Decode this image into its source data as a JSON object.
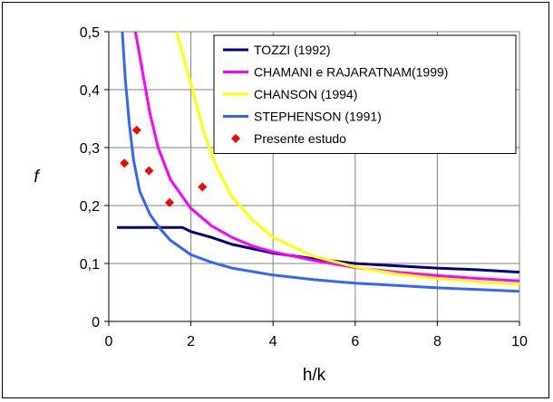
{
  "chart_data": {
    "type": "line",
    "xlabel": "h/k",
    "ylabel": "f",
    "xlim": [
      0,
      10
    ],
    "ylim": [
      0,
      0.5
    ],
    "x_ticks": [
      "0",
      "2",
      "4",
      "6",
      "8",
      "10"
    ],
    "y_ticks": [
      "0",
      "0,1",
      "0,2",
      "0,3",
      "0,4",
      "0,5"
    ],
    "grid": "on",
    "legend_position": "top-right",
    "series": [
      {
        "name": "TOZZI (1992)",
        "color": "#000080",
        "kind": "line",
        "points": [
          [
            0.2,
            0.162
          ],
          [
            1.0,
            0.162
          ],
          [
            1.8,
            0.162
          ],
          [
            2.0,
            0.155
          ],
          [
            2.5,
            0.145
          ],
          [
            3.0,
            0.133
          ],
          [
            4.0,
            0.118
          ],
          [
            5.0,
            0.108
          ],
          [
            6.0,
            0.1
          ],
          [
            7.0,
            0.096
          ],
          [
            8.0,
            0.092
          ],
          [
            9.0,
            0.089
          ],
          [
            10.0,
            0.085
          ]
        ]
      },
      {
        "name": "CHAMANI e RAJARATNAM(1999)",
        "color": "#ff00ff",
        "kind": "line",
        "points": [
          [
            0.65,
            0.5
          ],
          [
            0.8,
            0.44
          ],
          [
            1.0,
            0.36
          ],
          [
            1.2,
            0.3
          ],
          [
            1.5,
            0.245
          ],
          [
            2.0,
            0.195
          ],
          [
            2.5,
            0.165
          ],
          [
            3.0,
            0.145
          ],
          [
            3.5,
            0.13
          ],
          [
            4.0,
            0.12
          ],
          [
            5.0,
            0.105
          ],
          [
            6.0,
            0.093
          ],
          [
            7.0,
            0.085
          ],
          [
            8.0,
            0.079
          ],
          [
            9.0,
            0.074
          ],
          [
            10.0,
            0.07
          ]
        ]
      },
      {
        "name": "CHANSON (1994)",
        "color": "#ffff00",
        "kind": "line",
        "points": [
          [
            1.65,
            0.5
          ],
          [
            2.0,
            0.41
          ],
          [
            2.3,
            0.33
          ],
          [
            2.6,
            0.27
          ],
          [
            3.0,
            0.215
          ],
          [
            3.5,
            0.175
          ],
          [
            4.0,
            0.145
          ],
          [
            5.0,
            0.112
          ],
          [
            6.0,
            0.094
          ],
          [
            7.0,
            0.082
          ],
          [
            8.0,
            0.074
          ],
          [
            9.0,
            0.068
          ],
          [
            10.0,
            0.064
          ]
        ]
      },
      {
        "name": "STEPHENSON (1991)",
        "color": "#3366ff",
        "kind": "line",
        "points": [
          [
            0.33,
            0.5
          ],
          [
            0.4,
            0.42
          ],
          [
            0.5,
            0.34
          ],
          [
            0.6,
            0.28
          ],
          [
            0.75,
            0.225
          ],
          [
            1.0,
            0.185
          ],
          [
            1.25,
            0.16
          ],
          [
            1.5,
            0.14
          ],
          [
            2.0,
            0.115
          ],
          [
            2.5,
            0.102
          ],
          [
            3.0,
            0.092
          ],
          [
            4.0,
            0.08
          ],
          [
            5.0,
            0.072
          ],
          [
            6.0,
            0.066
          ],
          [
            7.0,
            0.062
          ],
          [
            8.0,
            0.058
          ],
          [
            9.0,
            0.055
          ],
          [
            10.0,
            0.052
          ]
        ]
      },
      {
        "name": "Presente estudo",
        "color": "#ff0000",
        "kind": "marker",
        "marker": "diamond",
        "points": [
          [
            0.38,
            0.273
          ],
          [
            0.68,
            0.33
          ],
          [
            0.98,
            0.26
          ],
          [
            1.48,
            0.205
          ],
          [
            2.28,
            0.232
          ]
        ]
      }
    ]
  }
}
